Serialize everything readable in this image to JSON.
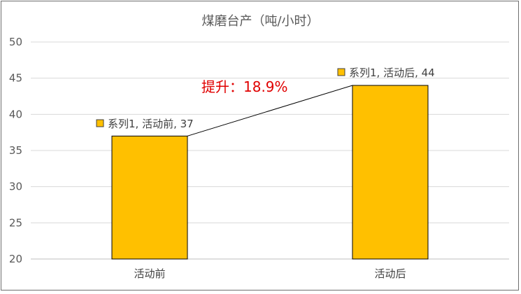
{
  "chart_data": {
    "type": "bar",
    "title": "煤磨台产（吨/小时）",
    "categories": [
      "活动前",
      "活动后"
    ],
    "series": [
      {
        "name": "系列1",
        "values": [
          37,
          44
        ]
      }
    ],
    "ylim": [
      20,
      50
    ],
    "yticks": [
      20,
      25,
      30,
      35,
      40,
      45,
      50
    ],
    "grid": true,
    "bar_color": "#FFC000",
    "bar_edge_color": "#000000",
    "data_labels": [
      "系列1, 活动前, 37",
      "系列1, 活动后, 44"
    ],
    "annotation": "提升：18.9%",
    "annotation_color": "#E00000",
    "connector_line": true
  }
}
